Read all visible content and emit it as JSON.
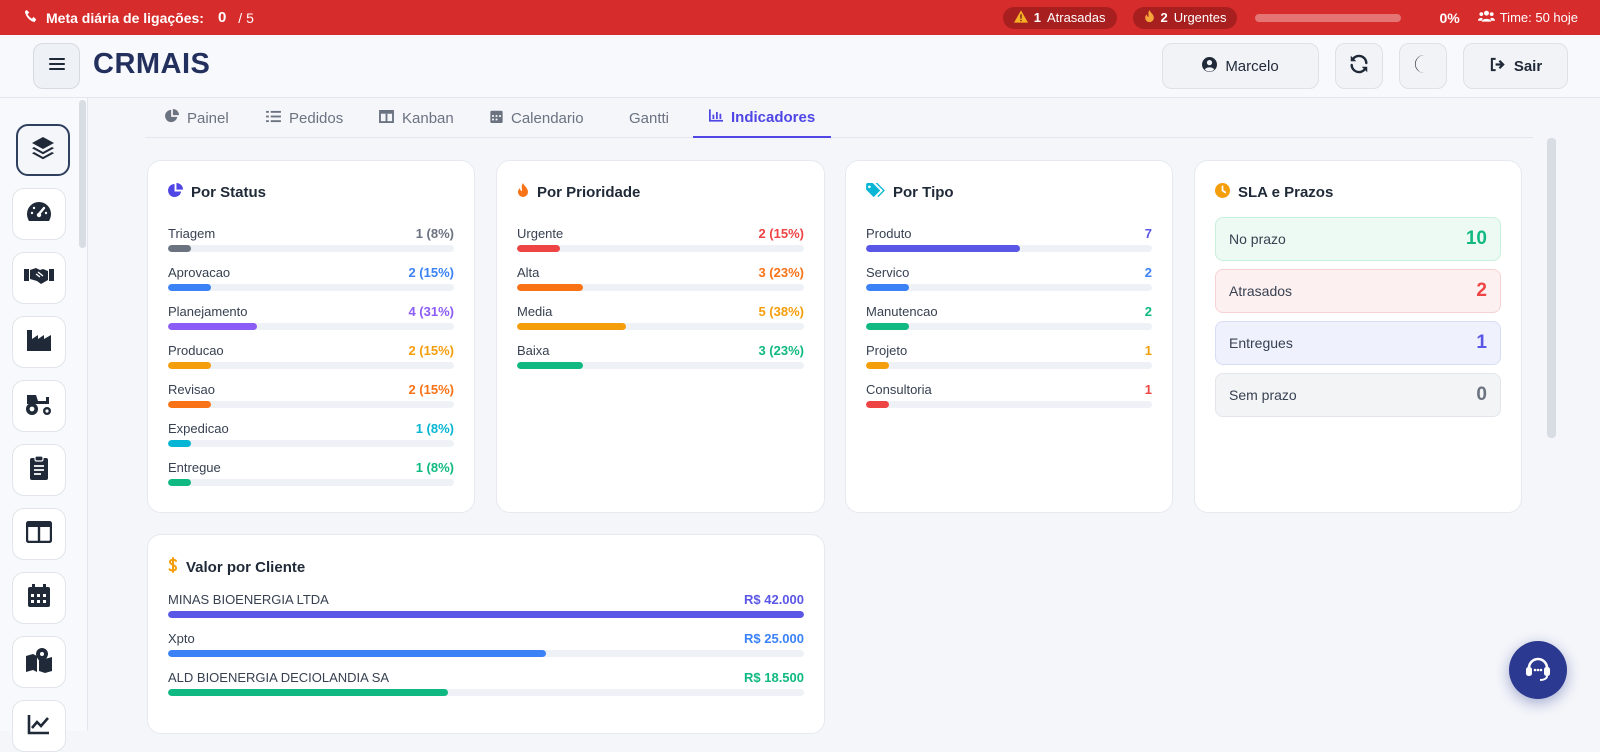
{
  "topbar": {
    "goal_label": "Meta diária de ligações:",
    "goal_current": "0",
    "goal_total": "/ 5",
    "overdue_count": "1",
    "overdue_label": "Atrasadas",
    "urgent_count": "2",
    "urgent_label": "Urgentes",
    "progress_percent": "0%",
    "progress_value": 0,
    "team_text": "Time: 50 hoje",
    "icons": [
      "phone-icon",
      "warning-icon",
      "fire-icon",
      "users-icon"
    ]
  },
  "header": {
    "logo": "CRMAIS",
    "user_name": "Marcelo",
    "logout_label": "Sair",
    "icons": [
      "hamburger-icon",
      "user-circle-icon",
      "refresh-icon",
      "moon-icon",
      "logout-icon"
    ]
  },
  "sidebar": {
    "items": [
      {
        "icon": "layers-icon"
      },
      {
        "icon": "dashboard-gauge-icon"
      },
      {
        "icon": "handshake-icon"
      },
      {
        "icon": "factory-icon"
      },
      {
        "icon": "tractor-icon"
      },
      {
        "icon": "clipboard-icon"
      },
      {
        "icon": "columns-icon"
      },
      {
        "icon": "calendar-icon"
      },
      {
        "icon": "map-icon"
      },
      {
        "icon": "chart-icon"
      }
    ]
  },
  "tabs": [
    {
      "label": "Painel",
      "icon": "pie-icon"
    },
    {
      "label": "Pedidos",
      "icon": "list-icon"
    },
    {
      "label": "Kanban",
      "icon": "kanban-icon"
    },
    {
      "label": "Calendario",
      "icon": "calendar-icon"
    },
    {
      "label": "Gantti",
      "icon": ""
    },
    {
      "label": "Indicadores",
      "icon": "bar-chart-icon",
      "active": true
    }
  ],
  "colors": {
    "brand_red": "#d72c2c",
    "accent": "#4f46e5",
    "gray": "#6b7280",
    "blue": "#3b82f6",
    "purple": "#8b5cf6",
    "orange": "#f59e0b",
    "dark_orange": "#f97316",
    "cyan": "#06b6d4",
    "green": "#10b981",
    "red": "#ef4444",
    "indigo": "#5b57e6"
  },
  "cards": {
    "status": {
      "title": "Por Status",
      "rows": [
        {
          "label": "Triagem",
          "value": "1 (8%)",
          "fraction": 0.08,
          "color": "#6b7280"
        },
        {
          "label": "Aprovacao",
          "value": "2 (15%)",
          "fraction": 0.15,
          "color": "#3b82f6"
        },
        {
          "label": "Planejamento",
          "value": "4 (31%)",
          "fraction": 0.31,
          "color": "#8b5cf6"
        },
        {
          "label": "Producao",
          "value": "2 (15%)",
          "fraction": 0.15,
          "color": "#f59e0b"
        },
        {
          "label": "Revisao",
          "value": "2 (15%)",
          "fraction": 0.15,
          "color": "#f97316"
        },
        {
          "label": "Expedicao",
          "value": "1 (8%)",
          "fraction": 0.08,
          "color": "#06b6d4"
        },
        {
          "label": "Entregue",
          "value": "1 (8%)",
          "fraction": 0.08,
          "color": "#10b981"
        }
      ]
    },
    "priority": {
      "title": "Por Prioridade",
      "rows": [
        {
          "label": "Urgente",
          "value": "2 (15%)",
          "fraction": 0.15,
          "color": "#ef4444"
        },
        {
          "label": "Alta",
          "value": "3 (23%)",
          "fraction": 0.23,
          "color": "#f97316"
        },
        {
          "label": "Media",
          "value": "5 (38%)",
          "fraction": 0.38,
          "color": "#f59e0b"
        },
        {
          "label": "Baixa",
          "value": "3 (23%)",
          "fraction": 0.23,
          "color": "#10b981"
        }
      ]
    },
    "type": {
      "title": "Por Tipo",
      "rows": [
        {
          "label": "Produto",
          "value": "7",
          "fraction": 0.54,
          "color": "#5b57e6"
        },
        {
          "label": "Servico",
          "value": "2",
          "fraction": 0.15,
          "color": "#3b82f6"
        },
        {
          "label": "Manutencao",
          "value": "2",
          "fraction": 0.15,
          "color": "#10b981"
        },
        {
          "label": "Projeto",
          "value": "1",
          "fraction": 0.08,
          "color": "#f59e0b"
        },
        {
          "label": "Consultoria",
          "value": "1",
          "fraction": 0.08,
          "color": "#ef4444"
        }
      ]
    },
    "sla": {
      "title": "SLA e Prazos",
      "items": [
        {
          "label": "No prazo",
          "value": "10",
          "bg": "#ecfaf3",
          "border": "#c9f0dc",
          "color": "#10b981"
        },
        {
          "label": "Atrasados",
          "value": "2",
          "bg": "#fdf0f0",
          "border": "#f6d2d2",
          "color": "#ef4444"
        },
        {
          "label": "Entregues",
          "value": "1",
          "bg": "#eff1fd",
          "border": "#d9dcf6",
          "color": "#5b57e6"
        },
        {
          "label": "Sem prazo",
          "value": "0",
          "bg": "#f3f4f6",
          "border": "#e3e5ea",
          "color": "#6b7280"
        }
      ]
    },
    "client": {
      "title": "Valor por Cliente",
      "rows": [
        {
          "label": "MINAS BIOENERGIA LTDA",
          "value": "R$ 42.000",
          "fraction": 1.0,
          "color": "#5b57e6"
        },
        {
          "label": "Xpto",
          "value": "R$ 25.000",
          "fraction": 0.595,
          "color": "#3b82f6"
        },
        {
          "label": "ALD BIOENERGIA DECIOLANDIA SA",
          "value": "R$ 18.500",
          "fraction": 0.44,
          "color": "#10b981"
        }
      ]
    }
  }
}
